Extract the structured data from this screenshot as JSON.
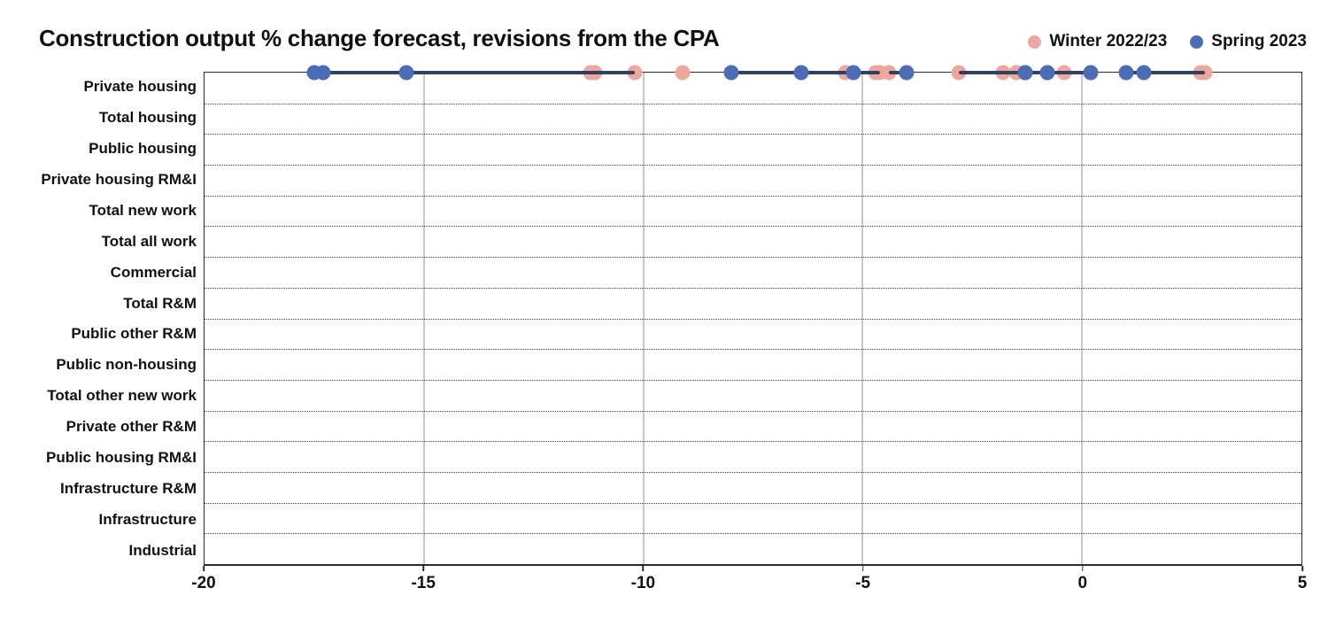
{
  "title": "Construction output % change forecast, revisions from the CPA",
  "legend": [
    {
      "label": "Winter 2022/23",
      "color": "#eca79f"
    },
    {
      "label": "Spring 2023",
      "color": "#4c6cb3"
    }
  ],
  "colors": {
    "winter_dot": "#eca79f",
    "spring_dot": "#4c6cb3",
    "connector": "#31405f",
    "gridline": "#c9c9c9",
    "border": "#2b2b2b"
  },
  "chart_data": {
    "type": "dumbbell",
    "title": "Construction output % change forecast, revisions from the CPA",
    "xlabel": "",
    "ylabel": "",
    "xlim": [
      -20,
      5
    ],
    "xticks": [
      -20,
      -15,
      -10,
      -5,
      0,
      5
    ],
    "grid": "vertical",
    "legend_position": "top-right",
    "categories": [
      "Private housing",
      "Total housing",
      "Public housing",
      "Private housing RM&I",
      "Total new work",
      "Total all work",
      "Commercial",
      "Total R&M",
      "Public other R&M",
      "Public non-housing",
      "Total other new work",
      "Private other R&M",
      "Public housing RM&I",
      "Infrastructure R&M",
      "Infrastructure",
      "Industrial"
    ],
    "series": [
      {
        "name": "Winter 2022/23",
        "values": [
          -11.2,
          -11.1,
          -10.2,
          -9.1,
          -4.7,
          -4.6,
          -5.4,
          -4.4,
          -1.8,
          -1.5,
          -0.4,
          -2.8,
          0.2,
          -0.8,
          2.8,
          2.7
        ]
      },
      {
        "name": "Spring 2023",
        "values": [
          -17.5,
          -17.3,
          -15.4,
          null,
          -8.0,
          -6.4,
          -5.2,
          -4.0,
          null,
          -1.3,
          -1.3,
          -0.8,
          null,
          0.2,
          1.0,
          1.4
        ]
      }
    ]
  }
}
